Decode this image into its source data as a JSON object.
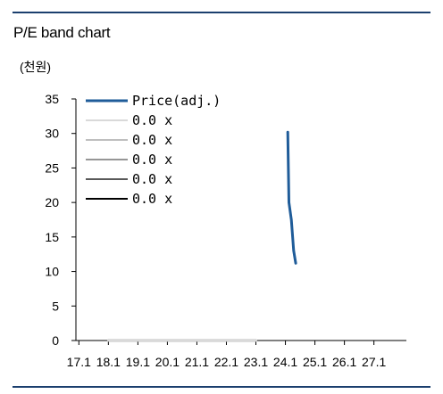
{
  "chart_data": {
    "type": "line",
    "title": "P/E band chart",
    "unit_label": "(천원)",
    "ylim": [
      0,
      35
    ],
    "y_ticks": [
      "35",
      "30",
      "25",
      "20",
      "15",
      "10",
      "5",
      "0"
    ],
    "y_tick_values": [
      35,
      30,
      25,
      20,
      15,
      10,
      5,
      0
    ],
    "x_ticks": [
      "17.1",
      "18.1",
      "19.1",
      "20.1",
      "21.1",
      "22.1",
      "23.1",
      "24.1",
      "25.1",
      "26.1",
      "27.1"
    ],
    "x_tick_values": [
      2017.0,
      2018.0,
      2019.0,
      2020.0,
      2021.0,
      2022.0,
      2023.0,
      2024.0,
      2025.0,
      2026.0,
      2027.0
    ],
    "xlim": [
      2016.9,
      2028.1
    ],
    "legend_placement": "top-left",
    "series": [
      {
        "name": "Price(adj.)",
        "color": "#1f5c99",
        "x": [
          2024.08,
          2024.12,
          2024.2,
          2024.28,
          2024.35
        ],
        "y": [
          30.2,
          20.0,
          17.5,
          13.0,
          11.2
        ]
      },
      {
        "name": "0.0 x",
        "color": "#d9d9d9",
        "x": [
          2018.0,
          2023.0
        ],
        "y": [
          0,
          0
        ]
      },
      {
        "name": "0.0 x",
        "color": "#bfbfbf",
        "x": [
          2018.0,
          2023.0
        ],
        "y": [
          0,
          0
        ]
      },
      {
        "name": "0.0 x",
        "color": "#969696",
        "x": [
          2018.0,
          2023.0
        ],
        "y": [
          0,
          0
        ]
      },
      {
        "name": "0.0 x",
        "color": "#595959",
        "x": [
          2018.0,
          2023.0
        ],
        "y": [
          0,
          0
        ]
      },
      {
        "name": "0.0 x",
        "color": "#000000",
        "x": [
          2018.0,
          2023.0
        ],
        "y": [
          0,
          0
        ]
      }
    ]
  }
}
